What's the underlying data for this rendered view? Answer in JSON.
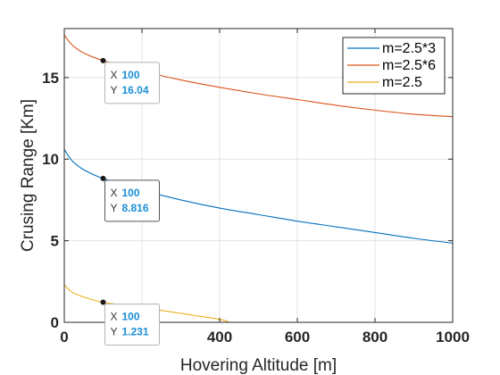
{
  "chart_data": {
    "type": "line",
    "title": "",
    "xlabel": "Hovering Altitude [m]",
    "ylabel": "Crusing Range [Km]",
    "xlim": [
      0,
      1000
    ],
    "ylim": [
      0,
      18
    ],
    "xticks": [
      0,
      200,
      400,
      600,
      800,
      1000
    ],
    "yticks": [
      0,
      5,
      10,
      15
    ],
    "grid": true,
    "legend_position": "top-right",
    "series": [
      {
        "name": "m=2.5*3",
        "color": "#0072BD",
        "x": [
          0,
          20,
          50,
          100,
          200,
          300,
          400,
          500,
          600,
          700,
          800,
          900,
          1000
        ],
        "y": [
          10.6,
          9.9,
          9.35,
          8.816,
          8.1,
          7.5,
          7.0,
          6.6,
          6.2,
          5.85,
          5.5,
          5.15,
          4.85
        ]
      },
      {
        "name": "m=2.5*6",
        "color": "#D95319",
        "x": [
          0,
          20,
          50,
          100,
          200,
          300,
          400,
          500,
          600,
          700,
          800,
          900,
          1000
        ],
        "y": [
          17.6,
          17.0,
          16.5,
          16.04,
          15.4,
          14.85,
          14.4,
          14.0,
          13.65,
          13.3,
          13.0,
          12.75,
          12.6
        ]
      },
      {
        "name": "m=2.5",
        "color": "#EDB120",
        "x": [
          0,
          20,
          50,
          100,
          200,
          300,
          400,
          425
        ],
        "y": [
          2.3,
          1.85,
          1.55,
          1.231,
          0.9,
          0.55,
          0.18,
          0.0
        ]
      }
    ],
    "datatips": [
      {
        "series": "m=2.5*6",
        "x_label": "X",
        "x_value": "100",
        "y_label": "Y",
        "y_value": "16.04",
        "x": 100,
        "y": 16.04
      },
      {
        "series": "m=2.5*3",
        "x_label": "X",
        "x_value": "100",
        "y_label": "Y",
        "y_value": "8.816",
        "x": 100,
        "y": 8.816
      },
      {
        "series": "m=2.5",
        "x_label": "X",
        "x_value": "100",
        "y_label": "Y",
        "y_value": "1.231",
        "x": 100,
        "y": 1.231
      }
    ]
  }
}
